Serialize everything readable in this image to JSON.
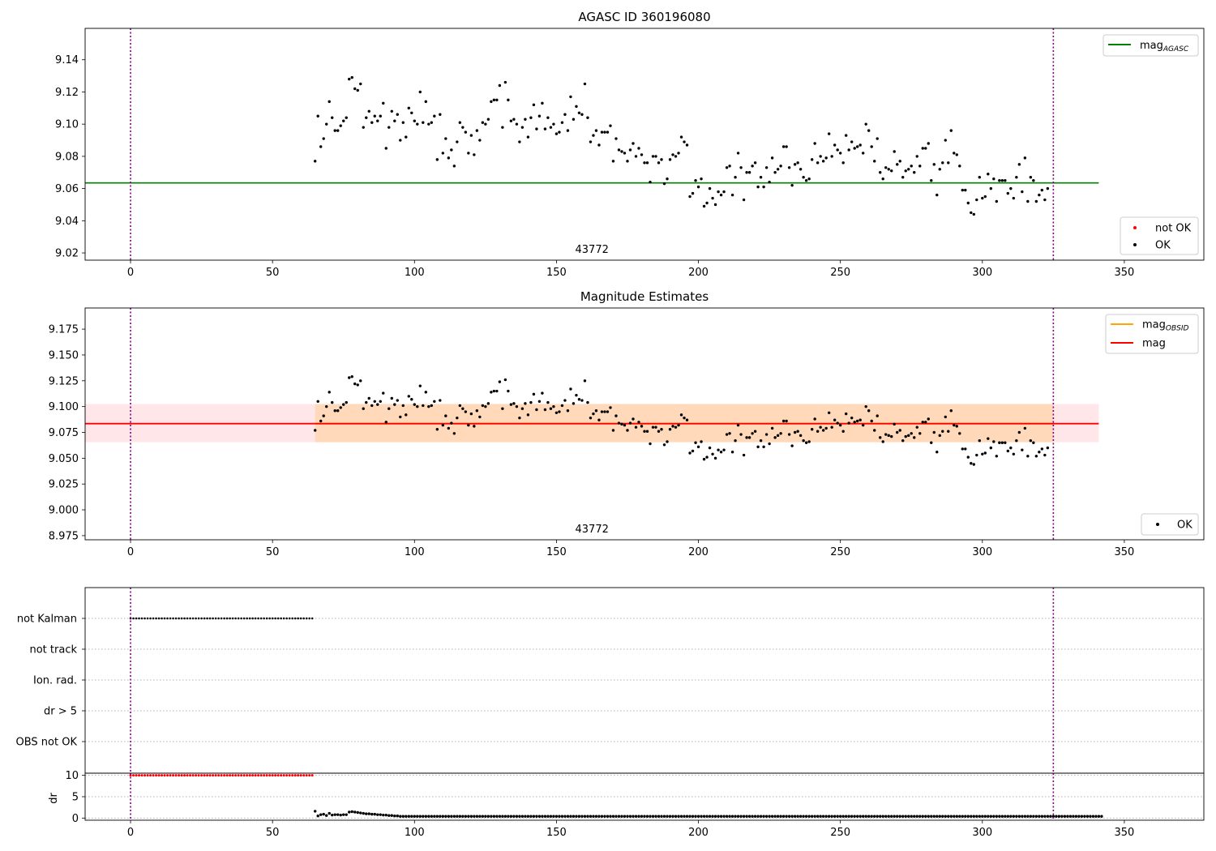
{
  "chart_data": [
    {
      "type": "scatter",
      "title": "AGASC ID 360196080",
      "xlabel": "",
      "ylabel": "",
      "xlim": [
        -16,
        378
      ],
      "ylim": [
        9.0155,
        9.1595
      ],
      "xticks": [
        0,
        50,
        100,
        150,
        200,
        250,
        300,
        350
      ],
      "xtick_labels": [
        "0",
        "50",
        "100",
        "150",
        "200",
        "250",
        "300",
        "350"
      ],
      "yticks": [
        9.02,
        9.04,
        9.06,
        9.08,
        9.1,
        9.12,
        9.14
      ],
      "ytick_labels": [
        "9.02",
        "9.04",
        "9.06",
        "9.08",
        "9.10",
        "9.12",
        "9.14"
      ],
      "obsid_label": {
        "text": "43772",
        "x": 162.5
      },
      "vlines": [
        0,
        325
      ],
      "hlines": [
        {
          "name": "mag_AGASC",
          "y": 9.0635,
          "x_range": [
            -16,
            341
          ],
          "color": "#008000"
        }
      ],
      "legend_lines": [
        {
          "base": "mag",
          "sub": "AGASC",
          "color": "#008000"
        }
      ],
      "legend_points": [
        {
          "label": "not OK",
          "color": "#ff0000"
        },
        {
          "label": "OK",
          "color": "#000000"
        }
      ],
      "legend_placement": [
        "upper right",
        "lower right"
      ],
      "series": [
        {
          "name": "OK",
          "color": "#000000",
          "x_start": 65,
          "x_end": 325,
          "values": [
            9.077,
            9.105,
            9.086,
            9.091,
            9.1,
            9.114,
            9.104,
            9.096,
            9.096,
            9.099,
            9.102,
            9.104,
            9.128,
            9.129,
            9.122,
            9.121,
            9.125,
            9.098,
            9.104,
            9.108,
            9.101,
            9.105,
            9.102,
            9.105,
            9.113,
            9.085,
            9.098,
            9.108,
            9.102,
            9.106,
            9.09,
            9.101,
            9.092,
            9.11,
            9.107,
            9.102,
            9.1,
            9.12,
            9.101,
            9.114,
            9.1,
            9.101,
            9.105,
            9.078,
            9.106,
            9.082,
            9.091,
            9.079,
            9.084,
            9.074,
            9.089,
            9.101,
            9.098,
            9.095,
            9.082,
            9.093,
            9.081,
            9.096,
            9.09,
            9.101,
            9.1,
            9.103,
            9.114,
            9.115,
            9.115,
            9.124,
            9.098,
            9.126,
            9.115,
            9.102,
            9.103,
            9.1,
            9.089,
            9.098,
            9.103,
            9.092,
            9.104,
            9.112,
            9.097,
            9.105,
            9.113,
            9.097,
            9.104,
            9.098,
            9.1,
            9.094,
            9.095,
            9.101,
            9.106,
            9.096,
            9.117,
            9.103,
            9.111,
            9.107,
            9.106,
            9.125,
            9.104,
            9.089,
            9.093,
            9.096,
            9.087,
            9.095,
            9.095,
            9.095,
            9.099,
            9.077,
            9.091,
            9.084,
            9.083,
            9.082,
            9.077,
            9.084,
            9.088,
            9.08,
            9.085,
            9.081,
            9.076,
            9.076,
            9.064,
            9.08,
            9.08,
            9.076,
            9.078,
            9.063,
            9.066,
            9.078,
            9.081,
            9.08,
            9.082,
            9.092,
            9.089,
            9.087,
            9.055,
            9.057,
            9.065,
            9.061,
            9.066,
            9.049,
            9.051,
            9.06,
            9.054,
            9.05,
            9.058,
            9.056,
            9.058,
            9.073,
            9.074,
            9.056,
            9.067,
            9.082,
            9.073,
            9.053,
            9.07,
            9.07,
            9.074,
            9.076,
            9.061,
            9.067,
            9.061,
            9.073,
            9.064,
            9.079,
            9.07,
            9.072,
            9.074,
            9.086,
            9.086,
            9.073,
            9.062,
            9.075,
            9.076,
            9.072,
            9.067,
            9.065,
            9.066,
            9.078,
            9.088,
            9.076,
            9.08,
            9.077,
            9.079,
            9.094,
            9.08,
            9.087,
            9.084,
            9.082,
            9.076,
            9.093,
            9.084,
            9.089,
            9.085,
            9.086,
            9.087,
            9.082,
            9.1,
            9.096,
            9.086,
            9.077,
            9.091,
            9.07,
            9.066,
            9.073,
            9.072,
            9.071,
            9.083,
            9.075,
            9.077,
            9.067,
            9.071,
            9.072,
            9.074,
            9.07,
            9.08,
            9.074,
            9.085,
            9.085,
            9.088,
            9.065,
            9.075,
            9.056,
            9.072,
            9.076,
            9.09,
            9.076,
            9.096,
            9.082,
            9.081,
            9.074,
            9.059,
            9.059,
            9.051,
            9.045,
            9.044,
            9.053,
            9.067,
            9.054,
            9.055,
            9.069,
            9.06,
            9.066,
            9.052,
            9.065,
            9.065,
            9.065,
            9.057,
            9.06,
            9.054,
            9.067,
            9.075,
            9.058,
            9.079,
            9.052,
            9.067,
            9.065,
            9.052,
            9.056,
            9.059,
            9.053,
            9.06
          ]
        }
      ]
    },
    {
      "type": "scatter",
      "title": "Magnitude Estimates",
      "xlabel": "",
      "ylabel": "",
      "xlim": [
        -16,
        378
      ],
      "ylim": [
        8.971,
        9.1955
      ],
      "xticks": [
        0,
        50,
        100,
        150,
        200,
        250,
        300,
        350
      ],
      "xtick_labels": [
        "0",
        "50",
        "100",
        "150",
        "200",
        "250",
        "300",
        "350"
      ],
      "yticks": [
        8.975,
        9.0,
        9.025,
        9.05,
        9.075,
        9.1,
        9.125,
        9.15,
        9.175
      ],
      "ytick_labels": [
        "8.975",
        "9.000",
        "9.025",
        "9.050",
        "9.075",
        "9.100",
        "9.125",
        "9.150",
        "9.175"
      ],
      "obsid_label": {
        "text": "43772",
        "x": 162.5
      },
      "vlines": [
        0,
        325
      ],
      "bands": [
        {
          "name": "mag_range",
          "x_range": [
            -16,
            341
          ],
          "y_range": [
            9.0655,
            9.1025
          ],
          "color": "#ffb6c1",
          "opacity": 0.35
        },
        {
          "name": "mag_OBSID_range",
          "x_range": [
            65,
            325
          ],
          "y_range": [
            9.0655,
            9.1025
          ],
          "color": "#ffa500",
          "opacity": 0.2
        }
      ],
      "hlines": [
        {
          "name": "mag_OBSID",
          "y": 9.0835,
          "x_range": [
            65,
            325
          ],
          "color": "#ffa500"
        },
        {
          "name": "mag",
          "y": 9.0835,
          "x_range": [
            -16,
            341
          ],
          "color": "#ff0000"
        }
      ],
      "legend_lines": [
        {
          "base": "mag",
          "sub": "OBSID",
          "color": "#ffa500"
        },
        {
          "base": "mag",
          "sub": "",
          "color": "#ff0000"
        }
      ],
      "legend_points": [
        {
          "label": "OK",
          "color": "#000000"
        }
      ],
      "legend_placement": [
        "upper right",
        "lower right"
      ],
      "series": [
        {
          "name": "OK",
          "color": "#000000",
          "x_start": 65,
          "x_end": 325,
          "same_as_panel": 0
        }
      ]
    },
    {
      "type": "scatter",
      "title": "",
      "xlabel": "",
      "ylabel": "",
      "categories": [
        "not Kalman",
        "not track",
        "Ion. rad.",
        "dr > 5",
        "OBS not OK"
      ],
      "flags": [
        {
          "category": "not Kalman",
          "x_range": [
            0,
            64
          ],
          "color": "#000000"
        }
      ],
      "xlim": [
        -16,
        378
      ],
      "vlines": [
        0,
        325
      ]
    },
    {
      "type": "scatter",
      "title": "",
      "xlabel": "",
      "ylabel": "dr",
      "xlim": [
        -16,
        378
      ],
      "ylim": [
        -0.5,
        10.5
      ],
      "xticks": [
        0,
        50,
        100,
        150,
        200,
        250,
        300,
        350
      ],
      "xtick_labels": [
        "0",
        "50",
        "100",
        "150",
        "200",
        "250",
        "300",
        "350"
      ],
      "yticks": [
        0,
        5,
        10
      ],
      "ytick_labels": [
        "0",
        "5",
        "10"
      ],
      "vlines": [
        0,
        325
      ],
      "series": [
        {
          "name": "dr not OK",
          "color": "#ff0000",
          "x_range": [
            0,
            64
          ],
          "y": 10
        },
        {
          "name": "dr OK",
          "color": "#000000",
          "x_start": 65,
          "x_end": 325,
          "values": [
            1.6,
            0.5,
            0.8,
            0.9,
            0.6,
            1.1,
            0.7,
            0.8,
            0.8,
            0.7,
            0.8,
            0.8,
            1.4,
            1.5,
            1.4,
            1.3,
            1.2,
            1.1,
            1.0,
            1.0,
            0.9,
            0.9,
            0.8,
            0.8,
            0.7,
            0.7,
            0.6,
            0.6,
            0.5,
            0.5,
            0.4,
            0.4,
            0.4,
            0.4,
            0.4,
            0.4,
            0.4,
            0.4,
            0.4,
            0.4,
            0.4,
            0.4,
            0.4,
            0.4,
            0.4,
            0.4,
            0.4,
            0.4,
            0.4,
            0.4,
            0.4,
            0.4,
            0.4,
            0.4,
            0.4,
            0.4,
            0.4,
            0.4,
            0.4,
            0.4,
            0.4,
            0.4,
            0.4,
            0.4,
            0.4,
            0.4,
            0.4,
            0.4,
            0.4,
            0.4,
            0.4,
            0.4,
            0.4,
            0.4,
            0.4,
            0.4,
            0.4,
            0.4,
            0.4,
            0.4,
            0.4,
            0.4,
            0.4,
            0.4,
            0.4,
            0.4,
            0.4,
            0.4,
            0.4,
            0.4,
            0.4,
            0.4,
            0.4,
            0.4,
            0.4,
            0.4,
            0.4,
            0.4,
            0.4,
            0.4,
            0.4,
            0.4,
            0.4,
            0.4,
            0.4,
            0.4,
            0.4,
            0.4,
            0.4,
            0.4,
            0.4,
            0.4,
            0.4,
            0.4,
            0.4,
            0.4,
            0.4,
            0.4,
            0.4,
            0.4,
            0.4,
            0.4,
            0.4,
            0.4,
            0.4,
            0.4,
            0.4,
            0.4,
            0.4,
            0.4,
            0.4,
            0.4,
            0.4,
            0.4,
            0.4,
            0.4,
            0.4,
            0.4,
            0.4,
            0.4,
            0.4,
            0.4,
            0.4,
            0.4,
            0.4,
            0.4,
            0.4,
            0.4,
            0.4,
            0.4,
            0.4,
            0.4,
            0.4,
            0.4,
            0.4,
            0.4,
            0.4,
            0.4,
            0.4,
            0.4,
            0.4,
            0.4,
            0.4,
            0.4,
            0.4,
            0.4,
            0.4,
            0.4,
            0.4,
            0.4,
            0.4,
            0.4,
            0.4,
            0.4,
            0.4,
            0.4,
            0.4,
            0.4,
            0.4,
            0.4,
            0.4,
            0.4,
            0.4,
            0.4,
            0.4,
            0.4,
            0.4,
            0.4,
            0.4,
            0.4,
            0.4,
            0.4,
            0.4,
            0.4,
            0.4,
            0.4,
            0.4,
            0.4,
            0.4,
            0.4,
            0.4,
            0.4,
            0.4,
            0.4,
            0.4,
            0.4,
            0.4,
            0.4,
            0.4,
            0.4,
            0.4,
            0.4,
            0.4,
            0.4,
            0.4,
            0.4,
            0.4,
            0.4,
            0.4,
            0.4,
            0.4,
            0.4,
            0.4,
            0.4,
            0.4,
            0.4,
            0.4,
            0.4,
            0.4,
            0.4,
            0.4,
            0.4,
            0.4,
            0.4,
            0.4,
            0.4,
            0.4,
            0.4,
            0.4,
            0.4,
            0.4,
            0.4,
            0.4,
            0.4,
            0.4,
            0.4,
            0.4,
            0.4,
            0.4,
            0.4,
            0.4,
            0.4,
            0.4,
            0.4,
            0.4,
            0.4,
            0.4,
            0.4,
            0.4,
            0.4,
            0.4,
            0.4,
            0.4,
            0.4,
            0.4,
            0.4,
            0.4,
            0.4,
            0.4,
            0.4,
            0.4,
            0.4,
            0.4,
            0.4,
            0.4,
            0.4,
            0.4,
            0.4
          ]
        }
      ]
    }
  ]
}
